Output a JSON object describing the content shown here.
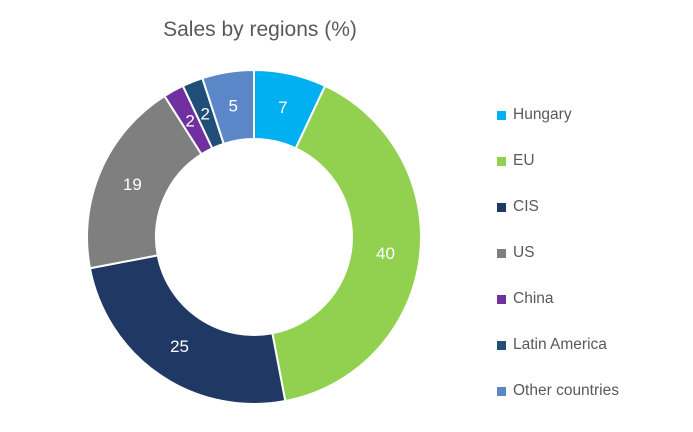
{
  "chart_data": {
    "type": "pie",
    "title": "Sales by regions (%)",
    "donut": true,
    "categories": [
      "Hungary",
      "EU",
      "CIS",
      "US",
      "China",
      "Latin America",
      "Other countries"
    ],
    "values": [
      7,
      40,
      25,
      19,
      2,
      2,
      5
    ],
    "labels": [
      "7",
      "40",
      "25",
      "19",
      "2",
      "2",
      "5"
    ],
    "colors": [
      "#00b0f0",
      "#92d050",
      "#1f3864",
      "#7f7f7f",
      "#7030a0",
      "#1f4e79",
      "#5b87c9"
    ],
    "legend_position": "right"
  }
}
